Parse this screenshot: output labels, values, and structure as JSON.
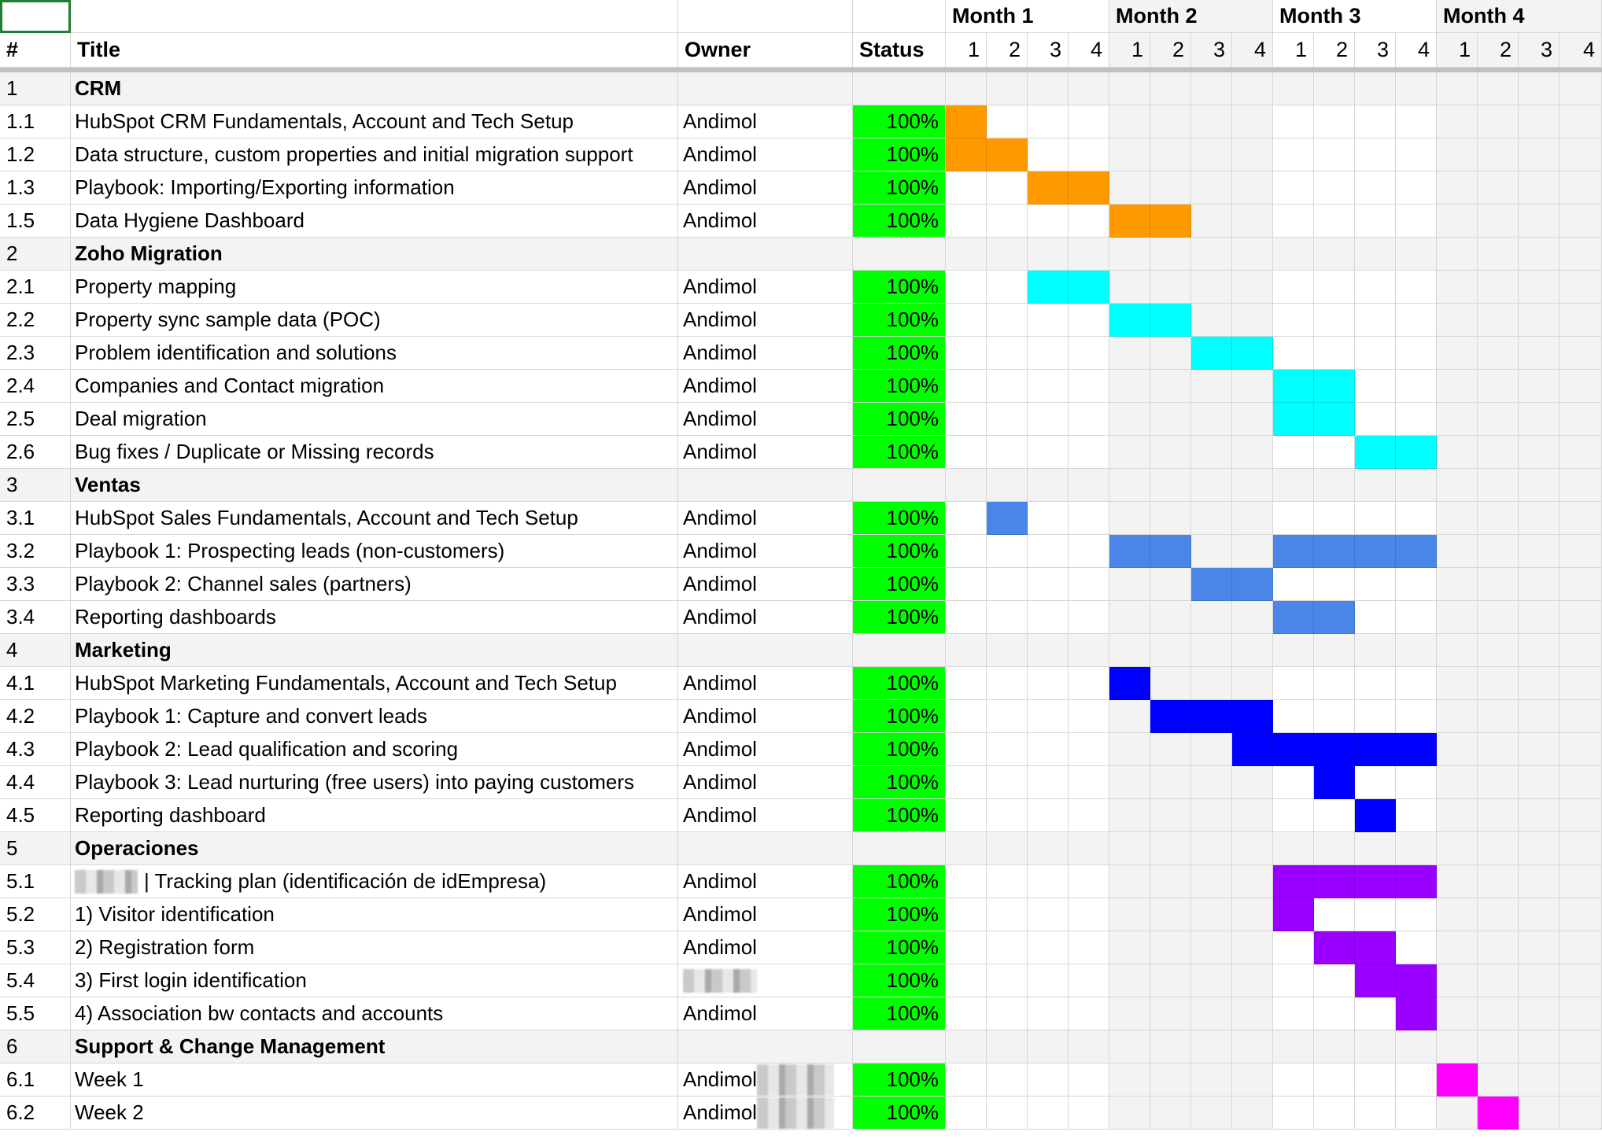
{
  "colors": {
    "status_green": "#00ff00",
    "crm": "#ff9900",
    "zoho": "#00ffff",
    "ventas": "#4a86e8",
    "marketing": "#0000ff",
    "operaciones": "#9900ff",
    "support": "#ff00ff"
  },
  "header": {
    "hash": "#",
    "title": "Title",
    "owner": "Owner",
    "status": "Status",
    "months": [
      "Month 1",
      "Month 2",
      "Month 3",
      "Month 4"
    ],
    "weeks": [
      "1",
      "2",
      "3",
      "4",
      "1",
      "2",
      "3",
      "4",
      "1",
      "2",
      "3",
      "4",
      "1",
      "2",
      "3",
      "4"
    ]
  },
  "rows": [
    {
      "num": "1",
      "title": "CRM",
      "section": true
    },
    {
      "num": "1.1",
      "title": "HubSpot CRM Fundamentals, Account and Tech Setup",
      "owner": "Andimol",
      "status": "100%",
      "color": "crm",
      "weeks": [
        1
      ]
    },
    {
      "num": "1.2",
      "title": "Data structure, custom properties and initial migration support",
      "owner": "Andimol",
      "status": "100%",
      "color": "crm",
      "weeks": [
        1,
        2
      ]
    },
    {
      "num": "1.3",
      "title": "Playbook: Importing/Exporting information",
      "owner": "Andimol",
      "status": "100%",
      "color": "crm",
      "weeks": [
        3,
        4
      ]
    },
    {
      "num": "1.5",
      "title": "Data Hygiene Dashboard",
      "owner": "Andimol",
      "status": "100%",
      "color": "crm",
      "weeks": [
        5,
        6
      ]
    },
    {
      "num": "2",
      "title": "Zoho Migration",
      "section": true
    },
    {
      "num": "2.1",
      "title": "Property mapping",
      "owner": "Andimol",
      "status": "100%",
      "color": "zoho",
      "weeks": [
        3,
        4
      ]
    },
    {
      "num": "2.2",
      "title": "Property sync sample data (POC)",
      "owner": "Andimol",
      "status": "100%",
      "color": "zoho",
      "weeks": [
        5,
        6
      ]
    },
    {
      "num": "2.3",
      "title": "Problem identification and solutions",
      "owner": "Andimol",
      "status": "100%",
      "color": "zoho",
      "weeks": [
        7,
        8
      ]
    },
    {
      "num": "2.4",
      "title": "Companies and Contact migration",
      "owner": "Andimol",
      "status": "100%",
      "color": "zoho",
      "weeks": [
        9,
        10
      ]
    },
    {
      "num": "2.5",
      "title": "Deal migration",
      "owner": "Andimol",
      "status": "100%",
      "color": "zoho",
      "weeks": [
        9,
        10
      ]
    },
    {
      "num": "2.6",
      "title": "Bug fixes / Duplicate or Missing records",
      "owner": "Andimol",
      "status": "100%",
      "color": "zoho",
      "weeks": [
        11,
        12
      ]
    },
    {
      "num": "3",
      "title": "Ventas",
      "section": true
    },
    {
      "num": "3.1",
      "title": "HubSpot Sales Fundamentals, Account and Tech Setup",
      "owner": "Andimol",
      "status": "100%",
      "color": "ventas",
      "weeks": [
        2
      ]
    },
    {
      "num": "3.2",
      "title": "Playbook 1: Prospecting leads (non-customers)",
      "owner": "Andimol",
      "status": "100%",
      "color": "ventas",
      "weeks": [
        5,
        6,
        9,
        10,
        11,
        12
      ]
    },
    {
      "num": "3.3",
      "title": "Playbook 2: Channel sales (partners)",
      "owner": "Andimol",
      "status": "100%",
      "color": "ventas",
      "weeks": [
        7,
        8
      ]
    },
    {
      "num": "3.4",
      "title": "Reporting dashboards",
      "owner": "Andimol",
      "status": "100%",
      "color": "ventas",
      "weeks": [
        9,
        10
      ]
    },
    {
      "num": "4",
      "title": "Marketing",
      "section": true
    },
    {
      "num": "4.1",
      "title": "HubSpot Marketing Fundamentals, Account and Tech Setup",
      "owner": "Andimol",
      "status": "100%",
      "color": "marketing",
      "weeks": [
        5
      ]
    },
    {
      "num": "4.2",
      "title": "Playbook 1: Capture and convert leads",
      "owner": "Andimol",
      "status": "100%",
      "color": "marketing",
      "weeks": [
        6,
        7,
        8
      ]
    },
    {
      "num": "4.3",
      "title": "Playbook 2: Lead qualification and scoring",
      "owner": "Andimol",
      "status": "100%",
      "color": "marketing",
      "weeks": [
        8,
        9,
        10,
        11,
        12
      ]
    },
    {
      "num": "4.4",
      "title": "Playbook 3: Lead nurturing (free users) into paying customers",
      "owner": "Andimol",
      "status": "100%",
      "color": "marketing",
      "weeks": [
        10
      ]
    },
    {
      "num": "4.5",
      "title": "Reporting dashboard",
      "owner": "Andimol",
      "status": "100%",
      "color": "marketing",
      "weeks": [
        11
      ]
    },
    {
      "num": "5",
      "title": "Operaciones",
      "section": true
    },
    {
      "num": "5.1",
      "title": "| Tracking plan (identificación de idEmpresa)",
      "owner": "Andimol",
      "status": "100%",
      "color": "operaciones",
      "weeks": [
        9,
        10,
        11,
        12
      ],
      "redacted_title": true
    },
    {
      "num": "5.2",
      "title": "1) Visitor identification",
      "owner": "Andimol",
      "status": "100%",
      "color": "operaciones",
      "weeks": [
        9
      ]
    },
    {
      "num": "5.3",
      "title": "2) Registration form",
      "owner": "Andimol",
      "status": "100%",
      "color": "operaciones",
      "weeks": [
        10,
        11
      ]
    },
    {
      "num": "5.4",
      "title": "3) First login identification",
      "owner": "",
      "status": "100%",
      "color": "operaciones",
      "weeks": [
        11,
        12
      ],
      "redacted_owner": true
    },
    {
      "num": "5.5",
      "title": "4) Association bw contacts and accounts",
      "owner": "Andimol",
      "status": "100%",
      "color": "operaciones",
      "weeks": [
        12
      ]
    },
    {
      "num": "6",
      "title": "Support & Change Management",
      "section": true
    },
    {
      "num": "6.1",
      "title": "Week 1",
      "owner": "Andimol",
      "status": "100%",
      "color": "support",
      "weeks": [
        13
      ],
      "redacted_after_owner": true
    },
    {
      "num": "6.2",
      "title": "Week 2",
      "owner": "Andimol",
      "status": "100%",
      "color": "support",
      "weeks": [
        14
      ],
      "redacted_after_owner": true
    }
  ]
}
